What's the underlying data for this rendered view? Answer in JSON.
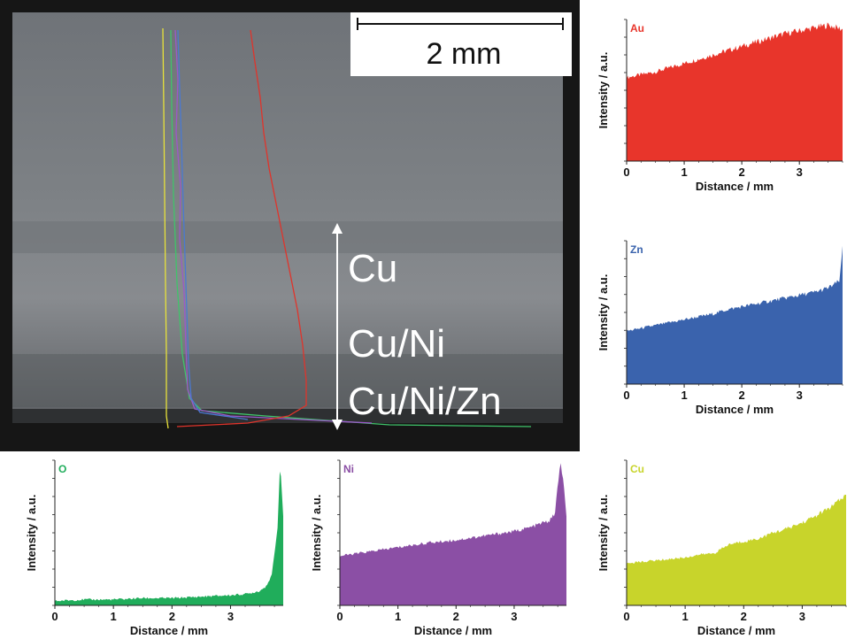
{
  "scale_bar": {
    "label": "2 mm"
  },
  "layer_labels": [
    "Cu",
    "Cu/Ni",
    "Cu/Ni/Zn"
  ],
  "chart_data": [
    {
      "type": "area",
      "element": "Au",
      "color": "#e8352b",
      "xlabel": "Distance / mm",
      "ylabel": "Intensity / a.u.",
      "xlim": [
        0,
        3.75
      ],
      "ylim": [
        0,
        1
      ],
      "xticks": [
        0,
        1,
        2,
        3
      ],
      "x": [
        0,
        0.25,
        0.5,
        0.75,
        1.0,
        1.25,
        1.5,
        1.75,
        2.0,
        2.25,
        2.5,
        2.75,
        3.0,
        3.25,
        3.5,
        3.75
      ],
      "y": [
        0.59,
        0.61,
        0.63,
        0.66,
        0.69,
        0.72,
        0.75,
        0.78,
        0.81,
        0.84,
        0.87,
        0.9,
        0.92,
        0.94,
        0.96,
        0.93
      ]
    },
    {
      "type": "area",
      "element": "Zn",
      "color": "#3a63ad",
      "xlabel": "Distance / mm",
      "ylabel": "Intensity / a.u.",
      "xlim": [
        0,
        3.75
      ],
      "ylim": [
        0,
        1
      ],
      "xticks": [
        0,
        1,
        2,
        3
      ],
      "x": [
        0,
        0.25,
        0.5,
        0.75,
        1.0,
        1.25,
        1.5,
        1.75,
        2.0,
        2.25,
        2.5,
        2.75,
        3.0,
        3.25,
        3.5,
        3.7,
        3.75
      ],
      "y": [
        0.37,
        0.39,
        0.41,
        0.43,
        0.45,
        0.47,
        0.49,
        0.52,
        0.54,
        0.56,
        0.58,
        0.6,
        0.62,
        0.64,
        0.67,
        0.72,
        0.96
      ]
    },
    {
      "type": "area",
      "element": "O",
      "color": "#20ad5b",
      "xlabel": "Distance / mm",
      "ylabel": "Intensity / a.u.",
      "xlim": [
        0,
        3.9
      ],
      "ylim": [
        0,
        1
      ],
      "xticks": [
        0,
        1,
        2,
        3
      ],
      "x": [
        0,
        0.5,
        1.0,
        1.5,
        2.0,
        2.5,
        3.0,
        3.3,
        3.5,
        3.6,
        3.7,
        3.75,
        3.8,
        3.85,
        3.9
      ],
      "y": [
        0.03,
        0.04,
        0.04,
        0.05,
        0.05,
        0.06,
        0.07,
        0.08,
        0.1,
        0.13,
        0.2,
        0.35,
        0.52,
        1.0,
        0.6
      ]
    },
    {
      "type": "area",
      "element": "Ni",
      "color": "#8b4fa5",
      "xlabel": "Distance / mm",
      "ylabel": "Intensity / a.u.",
      "xlim": [
        0,
        3.9
      ],
      "ylim": [
        0,
        1
      ],
      "xticks": [
        0,
        1,
        2,
        3
      ],
      "x": [
        0,
        0.5,
        1.0,
        1.5,
        2.0,
        2.5,
        3.0,
        3.3,
        3.5,
        3.6,
        3.7,
        3.75,
        3.8,
        3.85,
        3.9
      ],
      "y": [
        0.34,
        0.37,
        0.4,
        0.43,
        0.45,
        0.48,
        0.51,
        0.54,
        0.57,
        0.58,
        0.63,
        0.82,
        0.98,
        0.85,
        0.6
      ]
    },
    {
      "type": "area",
      "element": "Cu",
      "color": "#c8d42b",
      "xlabel": "Distance / mm",
      "ylabel": "Intensity / a.u.",
      "xlim": [
        0,
        3.75
      ],
      "ylim": [
        0,
        1
      ],
      "xticks": [
        0,
        1,
        2,
        3
      ],
      "x": [
        0,
        0.25,
        0.5,
        0.75,
        1.0,
        1.25,
        1.5,
        1.75,
        2.0,
        2.25,
        2.5,
        2.75,
        3.0,
        3.25,
        3.5,
        3.75
      ],
      "y": [
        0.29,
        0.3,
        0.31,
        0.32,
        0.33,
        0.35,
        0.36,
        0.42,
        0.44,
        0.46,
        0.5,
        0.53,
        0.57,
        0.62,
        0.68,
        0.76
      ]
    }
  ]
}
